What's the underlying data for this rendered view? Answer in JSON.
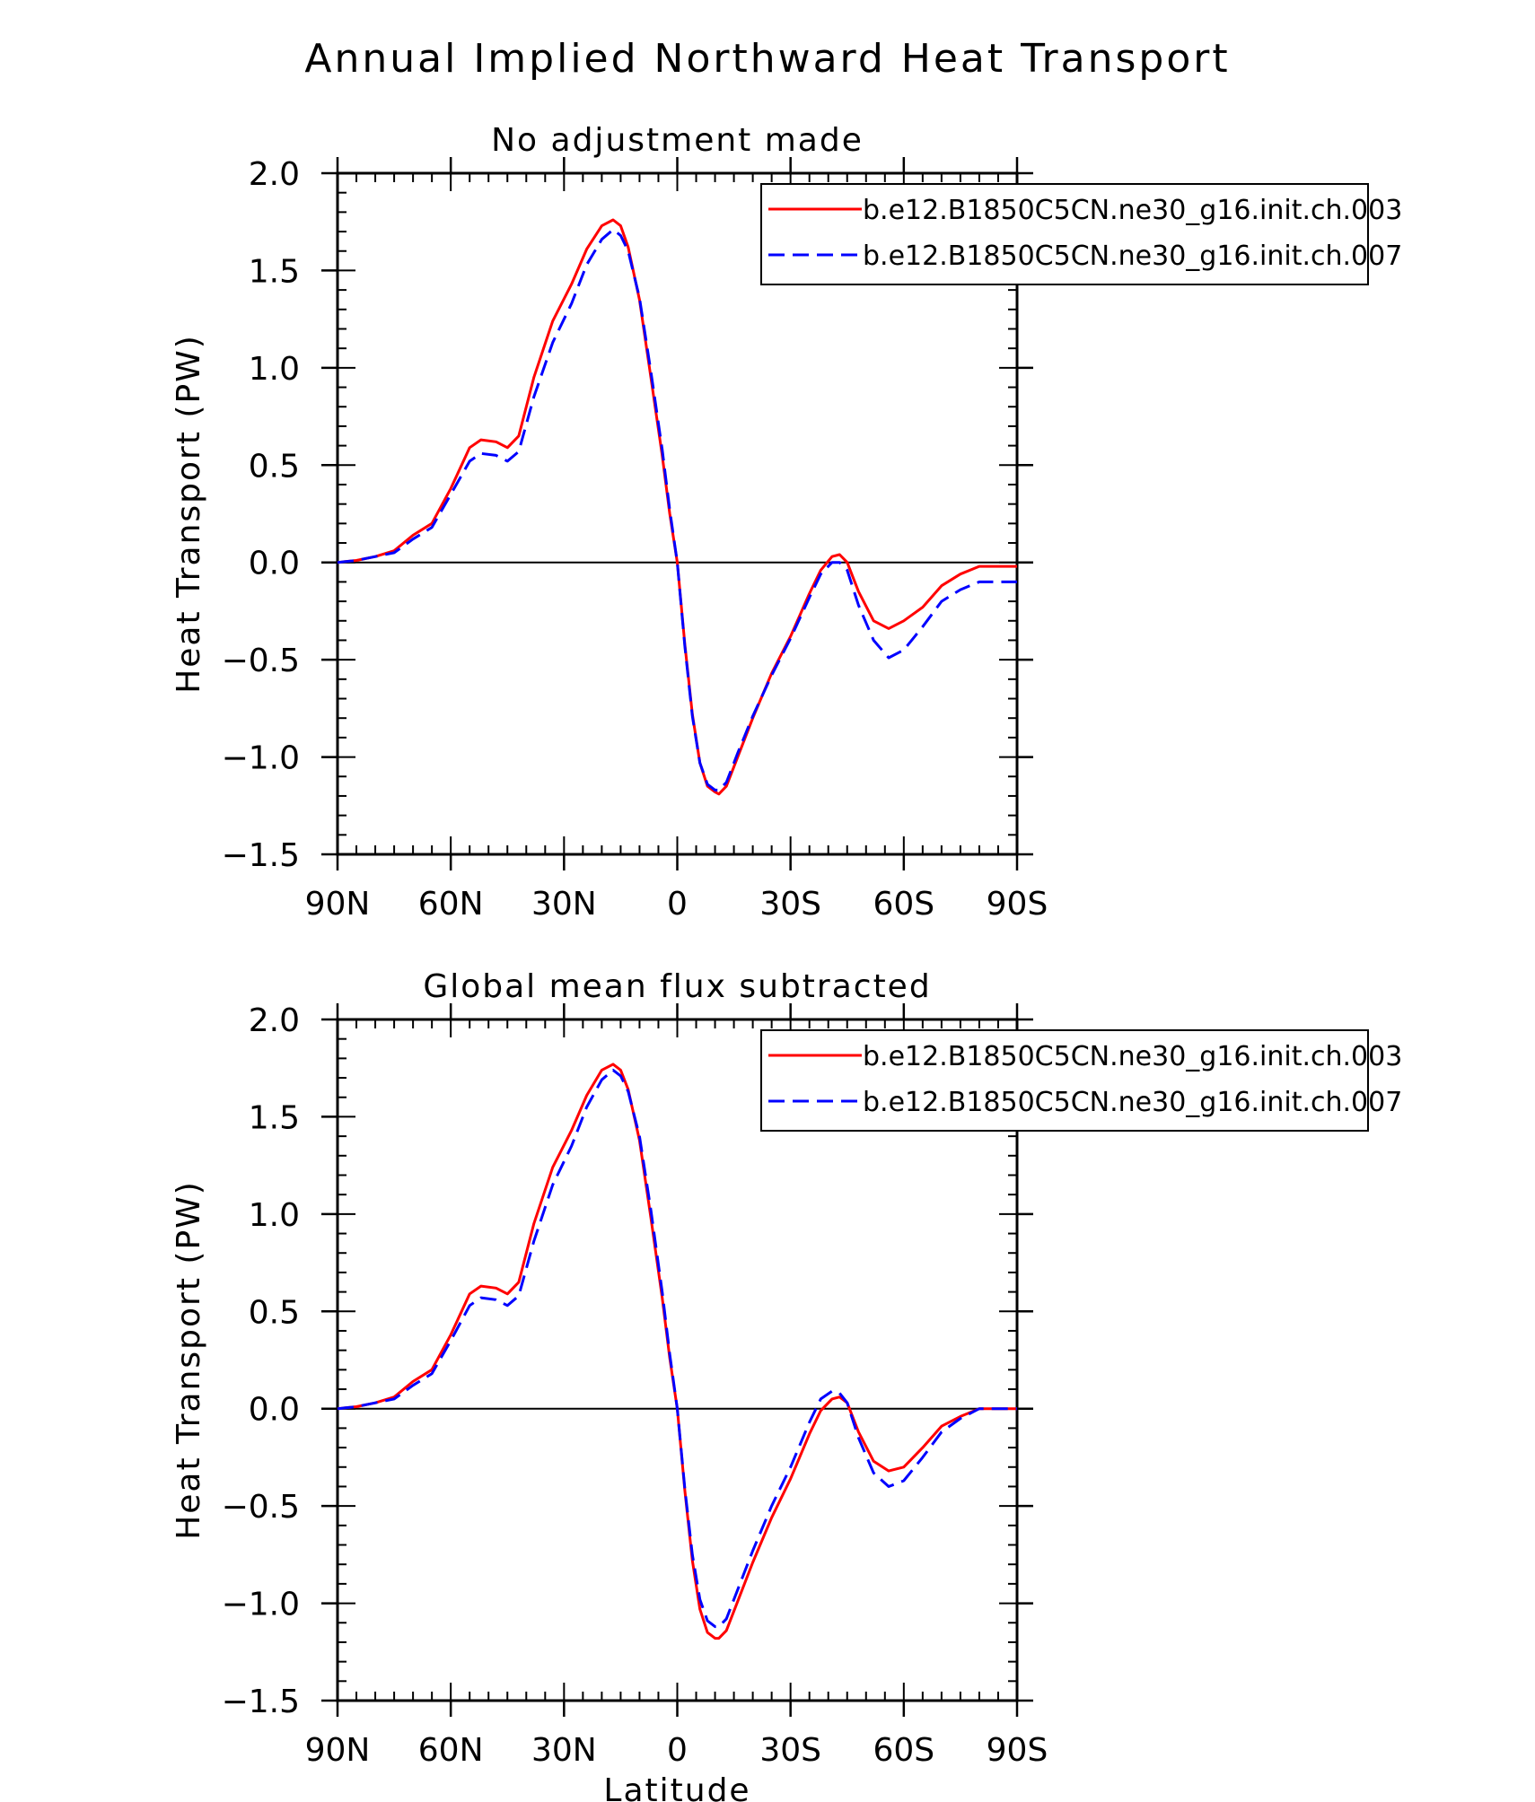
{
  "figure": {
    "title": "Annual Implied Northward Heat Transport"
  },
  "chart_data": [
    {
      "type": "line",
      "title": "No adjustment made",
      "xlabel": "",
      "ylabel": "Heat Transport (PW)",
      "xlim": [
        -90,
        90
      ],
      "ylim": [
        -1.5,
        2.0
      ],
      "x_ticks": [
        -90,
        -60,
        -30,
        0,
        30,
        60,
        90
      ],
      "x_tick_labels": [
        "90N",
        "60N",
        "30N",
        "0",
        "30S",
        "60S",
        "90S"
      ],
      "y_ticks": [
        -1.5,
        -1.0,
        -0.5,
        0.0,
        0.5,
        1.0,
        1.5,
        2.0
      ],
      "y_tick_labels": [
        "−1.5",
        "−1.0",
        "−0.5",
        "0.0",
        "0.5",
        "1.0",
        "1.5",
        "2.0"
      ],
      "zero_line": true,
      "legend_position": "top-right",
      "series": [
        {
          "name": "b.e12.B1850C5CN.ne30_g16.init.ch.003",
          "color": "#ff0000",
          "dash": "solid",
          "x": [
            -90,
            -85,
            -80,
            -75,
            -70,
            -65,
            -60,
            -55,
            -52,
            -48,
            -45,
            -42,
            -38,
            -33,
            -28,
            -24,
            -20,
            -17,
            -15,
            -13,
            -10,
            -7,
            -4,
            -2,
            0,
            2,
            4,
            6,
            8,
            10,
            11,
            13,
            16,
            20,
            25,
            30,
            35,
            38,
            41,
            43,
            45,
            48,
            52,
            56,
            60,
            65,
            70,
            75,
            80,
            85,
            90
          ],
          "y": [
            0.0,
            0.01,
            0.03,
            0.06,
            0.14,
            0.2,
            0.38,
            0.59,
            0.63,
            0.62,
            0.59,
            0.65,
            0.95,
            1.24,
            1.43,
            1.61,
            1.73,
            1.76,
            1.73,
            1.62,
            1.35,
            0.95,
            0.55,
            0.25,
            0.0,
            -0.42,
            -0.78,
            -1.03,
            -1.15,
            -1.18,
            -1.19,
            -1.15,
            -1.0,
            -0.8,
            -0.57,
            -0.38,
            -0.16,
            -0.04,
            0.03,
            0.04,
            0.0,
            -0.15,
            -0.3,
            -0.34,
            -0.3,
            -0.23,
            -0.12,
            -0.06,
            -0.02,
            -0.02,
            -0.02
          ]
        },
        {
          "name": "b.e12.B1850C5CN.ne30_g16.init.ch.007",
          "color": "#0000ff",
          "dash": "dashed",
          "x": [
            -90,
            -85,
            -80,
            -75,
            -70,
            -65,
            -60,
            -55,
            -52,
            -48,
            -45,
            -42,
            -38,
            -33,
            -28,
            -24,
            -20,
            -17,
            -15,
            -13,
            -10,
            -7,
            -4,
            -2,
            0,
            2,
            4,
            6,
            8,
            10,
            11,
            13,
            16,
            20,
            25,
            30,
            35,
            38,
            41,
            43,
            45,
            48,
            52,
            56,
            60,
            65,
            70,
            75,
            80,
            85,
            90
          ],
          "y": [
            0.0,
            0.01,
            0.03,
            0.05,
            0.12,
            0.18,
            0.35,
            0.52,
            0.56,
            0.55,
            0.52,
            0.57,
            0.85,
            1.13,
            1.33,
            1.53,
            1.66,
            1.71,
            1.68,
            1.6,
            1.36,
            0.98,
            0.58,
            0.27,
            0.0,
            -0.43,
            -0.79,
            -1.03,
            -1.14,
            -1.17,
            -1.17,
            -1.13,
            -0.98,
            -0.79,
            -0.58,
            -0.39,
            -0.18,
            -0.06,
            0.0,
            0.0,
            -0.04,
            -0.22,
            -0.4,
            -0.49,
            -0.45,
            -0.33,
            -0.2,
            -0.14,
            -0.1,
            -0.1,
            -0.1
          ]
        }
      ]
    },
    {
      "type": "line",
      "title": "Global mean flux subtracted",
      "xlabel": "Latitude",
      "ylabel": "Heat Transport (PW)",
      "xlim": [
        -90,
        90
      ],
      "ylim": [
        -1.5,
        2.0
      ],
      "x_ticks": [
        -90,
        -60,
        -30,
        0,
        30,
        60,
        90
      ],
      "x_tick_labels": [
        "90N",
        "60N",
        "30N",
        "0",
        "30S",
        "60S",
        "90S"
      ],
      "y_ticks": [
        -1.5,
        -1.0,
        -0.5,
        0.0,
        0.5,
        1.0,
        1.5,
        2.0
      ],
      "y_tick_labels": [
        "−1.5",
        "−1.0",
        "−0.5",
        "0.0",
        "0.5",
        "1.0",
        "1.5",
        "2.0"
      ],
      "zero_line": true,
      "legend_position": "top-right",
      "series": [
        {
          "name": "b.e12.B1850C5CN.ne30_g16.init.ch.003",
          "color": "#ff0000",
          "dash": "solid",
          "x": [
            -90,
            -85,
            -80,
            -75,
            -70,
            -65,
            -60,
            -55,
            -52,
            -48,
            -45,
            -42,
            -38,
            -33,
            -28,
            -24,
            -20,
            -17,
            -15,
            -13,
            -10,
            -7,
            -4,
            -2,
            0,
            2,
            4,
            6,
            8,
            10,
            11,
            13,
            16,
            20,
            25,
            30,
            35,
            38,
            41,
            43,
            45,
            48,
            52,
            56,
            60,
            65,
            70,
            75,
            80,
            85,
            90
          ],
          "y": [
            0.0,
            0.01,
            0.03,
            0.06,
            0.14,
            0.2,
            0.38,
            0.59,
            0.63,
            0.62,
            0.59,
            0.65,
            0.95,
            1.24,
            1.43,
            1.61,
            1.74,
            1.77,
            1.74,
            1.64,
            1.38,
            0.98,
            0.57,
            0.26,
            0.0,
            -0.42,
            -0.78,
            -1.03,
            -1.15,
            -1.18,
            -1.18,
            -1.14,
            -0.99,
            -0.79,
            -0.56,
            -0.36,
            -0.13,
            -0.01,
            0.05,
            0.06,
            0.03,
            -0.12,
            -0.27,
            -0.32,
            -0.3,
            -0.2,
            -0.09,
            -0.04,
            0.0,
            0.0,
            0.0
          ]
        },
        {
          "name": "b.e12.B1850C5CN.ne30_g16.init.ch.007",
          "color": "#0000ff",
          "dash": "dashed",
          "x": [
            -90,
            -85,
            -80,
            -75,
            -70,
            -65,
            -60,
            -55,
            -52,
            -48,
            -45,
            -42,
            -38,
            -33,
            -28,
            -24,
            -20,
            -17,
            -15,
            -13,
            -10,
            -7,
            -4,
            -2,
            0,
            2,
            4,
            6,
            8,
            10,
            11,
            13,
            16,
            20,
            25,
            30,
            35,
            38,
            41,
            43,
            45,
            48,
            52,
            56,
            60,
            65,
            70,
            75,
            80,
            85,
            90
          ],
          "y": [
            0.0,
            0.01,
            0.03,
            0.05,
            0.12,
            0.18,
            0.35,
            0.53,
            0.57,
            0.56,
            0.53,
            0.58,
            0.86,
            1.15,
            1.35,
            1.55,
            1.69,
            1.74,
            1.71,
            1.63,
            1.4,
            1.02,
            0.6,
            0.28,
            0.0,
            -0.41,
            -0.75,
            -0.98,
            -1.09,
            -1.12,
            -1.12,
            -1.08,
            -0.93,
            -0.73,
            -0.5,
            -0.3,
            -0.07,
            0.05,
            0.09,
            0.08,
            0.03,
            -0.15,
            -0.33,
            -0.4,
            -0.37,
            -0.25,
            -0.12,
            -0.05,
            0.0,
            0.0,
            0.0
          ]
        }
      ]
    }
  ]
}
